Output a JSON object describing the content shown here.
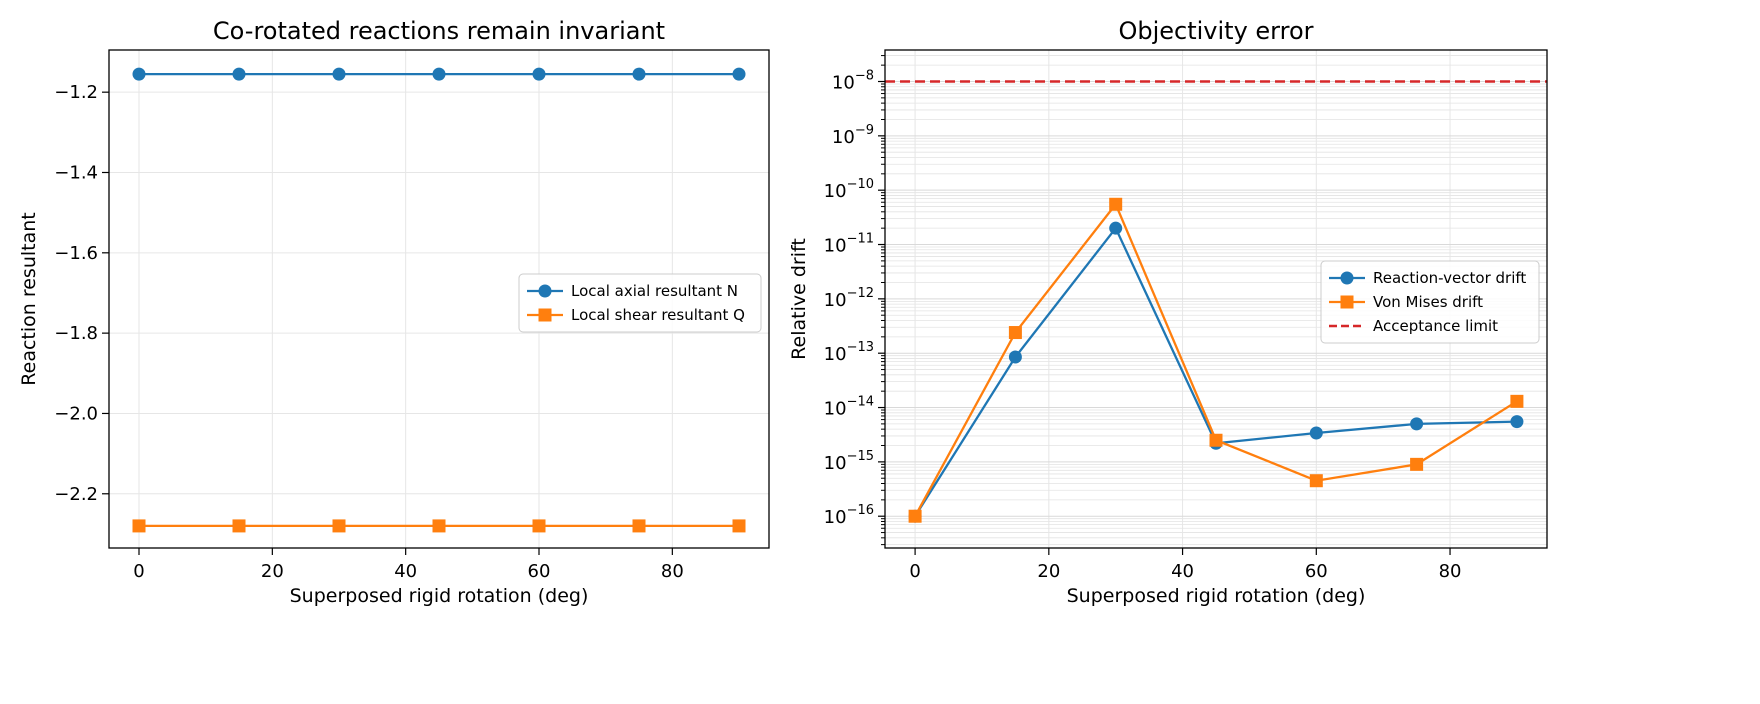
{
  "chart_data": [
    {
      "type": "line",
      "title": "Co-rotated reactions remain invariant",
      "xlabel": "Superposed rigid rotation (deg)",
      "ylabel": "Reaction resultant",
      "xlim": [
        -4.5,
        94.5
      ],
      "ylim": [
        -2.335,
        -1.095
      ],
      "x_ticks": [
        0,
        20,
        40,
        60,
        80
      ],
      "y_ticks": [
        -2.2,
        -2.0,
        -1.8,
        -1.6,
        -1.4,
        -1.2
      ],
      "y_tick_labels": [
        "−2.2",
        "−2.0",
        "−1.8",
        "−1.6",
        "−1.4",
        "−1.2"
      ],
      "grid": true,
      "legend_position": "center-right",
      "x": [
        0,
        15,
        30,
        45,
        60,
        75,
        90
      ],
      "series": [
        {
          "name": "Local axial resultant N",
          "color": "#1f77b4",
          "marker": "circle",
          "values": [
            -1.155,
            -1.155,
            -1.155,
            -1.155,
            -1.155,
            -1.155,
            -1.155
          ]
        },
        {
          "name": "Local shear resultant Q",
          "color": "#ff7f0e",
          "marker": "square",
          "values": [
            -2.28,
            -2.28,
            -2.28,
            -2.28,
            -2.28,
            -2.28,
            -2.28
          ]
        }
      ]
    },
    {
      "type": "line",
      "title": "Objectivity error",
      "xlabel": "Superposed rigid rotation (deg)",
      "ylabel": "Relative drift",
      "yscale": "log",
      "xlim": [
        -4.5,
        94.5
      ],
      "ylim": [
        2.6e-17,
        3.8e-08
      ],
      "x_ticks": [
        0,
        20,
        40,
        60,
        80
      ],
      "y_tick_exponents": [
        -16,
        -15,
        -14,
        -13,
        -12,
        -11,
        -10,
        -9,
        -8
      ],
      "grid": true,
      "legend_position": "center-right",
      "x": [
        0,
        15,
        30,
        45,
        60,
        75,
        90
      ],
      "series": [
        {
          "name": "Reaction-vector drift",
          "color": "#1f77b4",
          "marker": "circle",
          "values": [
            1e-16,
            8.5e-14,
            2e-11,
            2.2e-15,
            3.4e-15,
            5e-15,
            5.5e-15
          ]
        },
        {
          "name": "Von Mises drift",
          "color": "#ff7f0e",
          "marker": "square",
          "values": [
            1e-16,
            2.4e-13,
            5.5e-11,
            2.5e-15,
            4.5e-16,
            9e-16,
            1.3e-14
          ]
        },
        {
          "name": "Acceptance limit",
          "color": "#d62728",
          "style": "dashed",
          "constant": 1e-08
        }
      ]
    }
  ]
}
